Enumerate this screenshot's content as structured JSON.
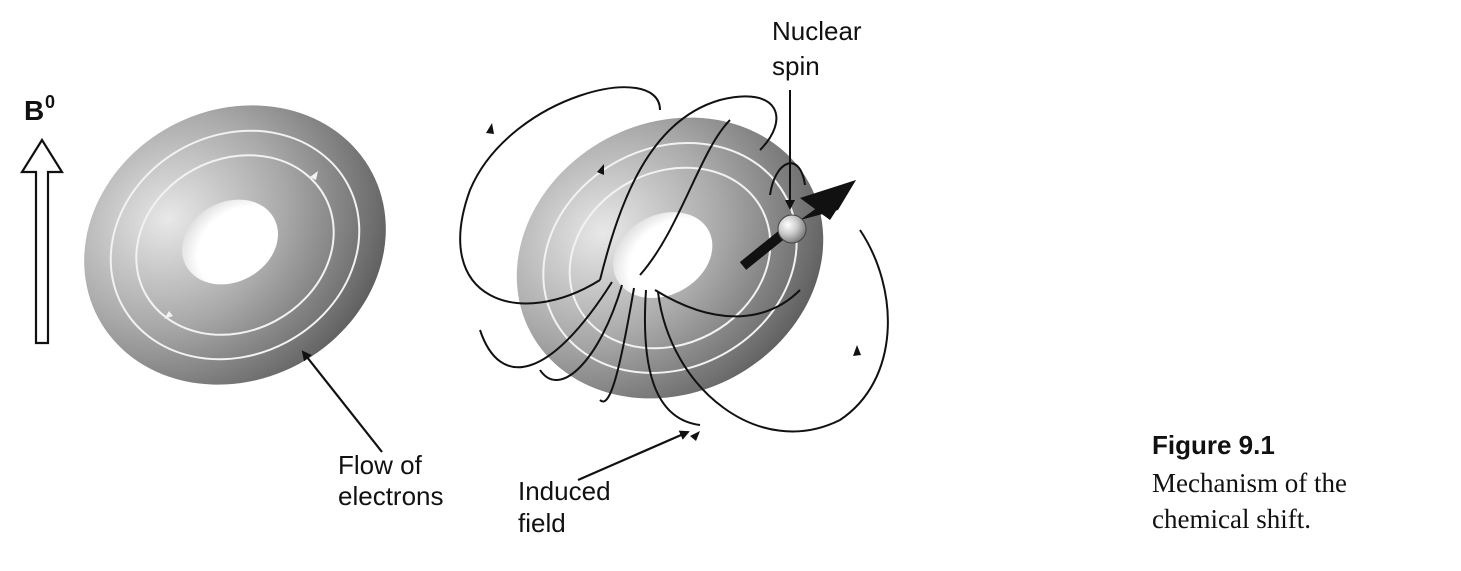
{
  "labels": {
    "field_symbol": "B",
    "field_superscript": "0",
    "flow_line1": "Flow of",
    "flow_line2": "electrons",
    "induced_line1": "Induced",
    "induced_line2": "field",
    "nuclear_line1": "Nuclear",
    "nuclear_line2": "spin"
  },
  "caption": {
    "title": "Figure 9.1",
    "text_line1": "Mechanism of the",
    "text_line2": "chemical shift."
  }
}
